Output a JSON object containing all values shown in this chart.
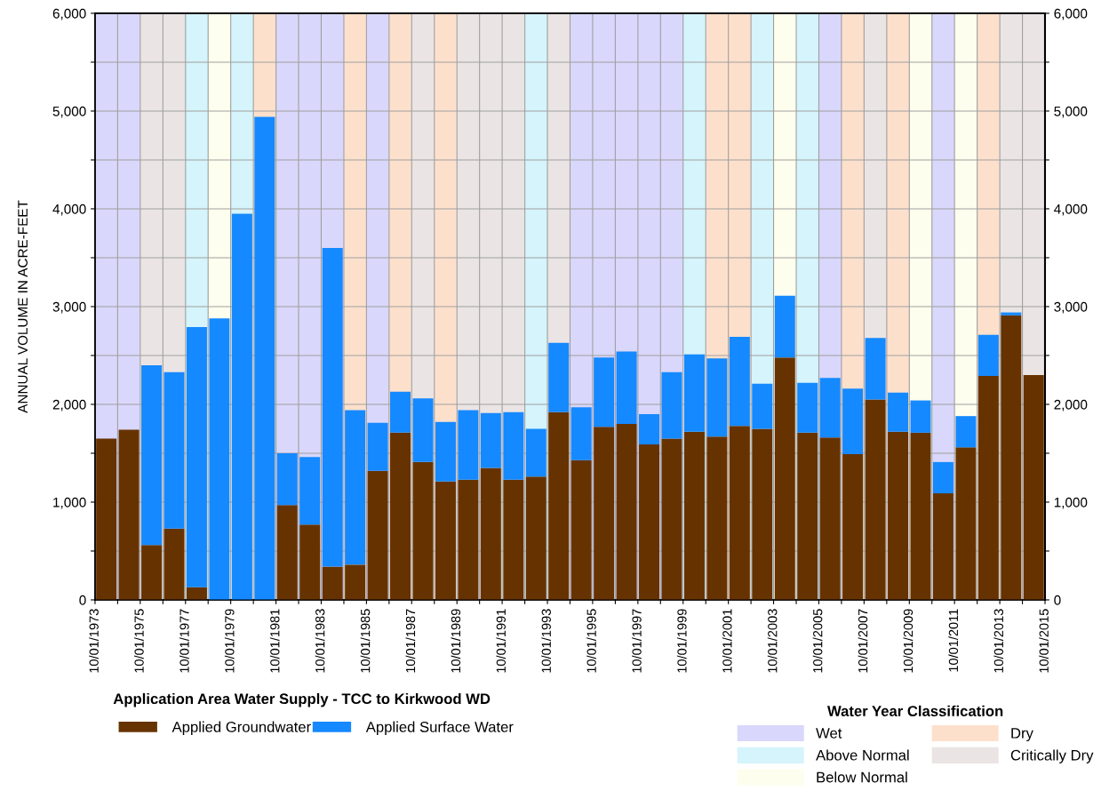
{
  "chart_data": {
    "type": "bar",
    "stacked": true,
    "title": "Application Area Water Supply - TCC to Kirkwood WD",
    "ylabel": "ANNUAL VOLUME IN ACRE-FEET",
    "legend_title": "Water Year Classification",
    "x": [
      "1974-04-01",
      "1975-04-01",
      "1976-04-01",
      "1977-04-01",
      "1978-04-01",
      "1979-04-01",
      "1980-04-01",
      "1981-04-01",
      "1982-04-01",
      "1983-04-01",
      "1984-04-01",
      "1985-04-01",
      "1986-04-01",
      "1987-04-01",
      "1988-04-01",
      "1989-04-01",
      "1990-04-01",
      "1991-04-01",
      "1992-04-01",
      "1993-04-01",
      "1994-04-01",
      "1995-04-01",
      "1996-04-01",
      "1997-04-01",
      "1998-04-01",
      "1999-04-01",
      "2000-04-01",
      "2001-04-01",
      "2002-04-01",
      "2003-04-01",
      "2004-04-01",
      "2005-04-01",
      "2006-04-01",
      "2007-04-01",
      "2008-04-01",
      "2009-04-01",
      "2010-04-01",
      "2011-04-01",
      "2012-04-01",
      "2013-04-01",
      "2014-04-01",
      "2015-04-01"
    ],
    "series": [
      {
        "name": "Applied Groundwater",
        "color": "#663300",
        "values": [
          1650,
          1740,
          560,
          730,
          130,
          0,
          0,
          0,
          970,
          770,
          340,
          360,
          1320,
          1710,
          1410,
          1210,
          1230,
          1350,
          1230,
          1260,
          1920,
          1430,
          1770,
          1800,
          1590,
          1650,
          1720,
          1670,
          1780,
          1750,
          2480,
          1710,
          1660,
          1490,
          2050,
          1720,
          1710,
          1090,
          1560,
          2290,
          2910,
          2300
        ]
      },
      {
        "name": "Applied Surface Water",
        "color": "#1589ff",
        "values": [
          0,
          0,
          1840,
          1600,
          2660,
          2880,
          3950,
          4940,
          530,
          690,
          3260,
          1580,
          490,
          420,
          650,
          610,
          710,
          560,
          690,
          490,
          710,
          540,
          710,
          740,
          310,
          680,
          790,
          800,
          910,
          460,
          630,
          510,
          610,
          670,
          630,
          400,
          330,
          320,
          320,
          420,
          30,
          0
        ]
      }
    ],
    "xlim": [
      "1973-10-01",
      "2015-10-01"
    ],
    "xticks": [
      {
        "value": "1973-10-01",
        "label": "10/01/1973"
      },
      {
        "value": "1974-10-01",
        "label": null
      },
      {
        "value": "1975-10-01",
        "label": "10/01/1975"
      },
      {
        "value": "1976-10-01",
        "label": null
      },
      {
        "value": "1977-10-01",
        "label": "10/01/1977"
      },
      {
        "value": "1978-10-01",
        "label": null
      },
      {
        "value": "1979-10-01",
        "label": "10/01/1979"
      },
      {
        "value": "1980-10-01",
        "label": null
      },
      {
        "value": "1981-10-01",
        "label": "10/01/1981"
      },
      {
        "value": "1982-10-01",
        "label": null
      },
      {
        "value": "1983-10-01",
        "label": "10/01/1983"
      },
      {
        "value": "1984-10-01",
        "label": null
      },
      {
        "value": "1985-10-01",
        "label": "10/01/1985"
      },
      {
        "value": "1986-10-01",
        "label": null
      },
      {
        "value": "1987-10-01",
        "label": "10/01/1987"
      },
      {
        "value": "1988-10-01",
        "label": null
      },
      {
        "value": "1989-10-01",
        "label": "10/01/1989"
      },
      {
        "value": "1990-10-01",
        "label": null
      },
      {
        "value": "1991-10-01",
        "label": "10/01/1991"
      },
      {
        "value": "1992-10-01",
        "label": null
      },
      {
        "value": "1993-10-01",
        "label": "10/01/1993"
      },
      {
        "value": "1994-10-01",
        "label": null
      },
      {
        "value": "1995-10-01",
        "label": "10/01/1995"
      },
      {
        "value": "1996-10-01",
        "label": null
      },
      {
        "value": "1997-10-01",
        "label": "10/01/1997"
      },
      {
        "value": "1998-10-01",
        "label": null
      },
      {
        "value": "1999-10-01",
        "label": "10/01/1999"
      },
      {
        "value": "2000-10-01",
        "label": null
      },
      {
        "value": "2001-10-01",
        "label": "10/01/2001"
      },
      {
        "value": "2002-10-01",
        "label": null
      },
      {
        "value": "2003-10-01",
        "label": "10/01/2003"
      },
      {
        "value": "2004-10-01",
        "label": null
      },
      {
        "value": "2005-10-01",
        "label": "10/01/2005"
      },
      {
        "value": "2006-10-01",
        "label": null
      },
      {
        "value": "2007-10-01",
        "label": "10/01/2007"
      },
      {
        "value": "2008-10-01",
        "label": null
      },
      {
        "value": "2009-10-01",
        "label": "10/01/2009"
      },
      {
        "value": "2010-10-01",
        "label": null
      },
      {
        "value": "2011-10-01",
        "label": "10/01/2011"
      },
      {
        "value": "2012-10-01",
        "label": null
      },
      {
        "value": "2013-10-01",
        "label": "10/01/2013"
      },
      {
        "value": "2014-10-01",
        "label": null
      },
      {
        "value": "2015-10-01",
        "label": "10/01/2015"
      }
    ],
    "ylim": [
      0,
      6000
    ],
    "yticks": [
      0,
      {
        "value": 500,
        "label": null
      },
      {
        "value": 1000,
        "label": "1,000"
      },
      {
        "value": 1500,
        "label": null
      },
      {
        "value": 2000,
        "label": "2,000"
      },
      {
        "value": 2500,
        "label": null
      },
      {
        "value": 3000,
        "label": "3,000"
      },
      {
        "value": 3500,
        "label": null
      },
      {
        "value": 4000,
        "label": "4,000"
      },
      {
        "value": 4500,
        "label": null
      },
      {
        "value": 5000,
        "label": "5,000"
      },
      {
        "value": 5500,
        "label": null
      },
      {
        "value": 6000,
        "label": "6,000"
      }
    ],
    "y2lim": [
      0,
      6000
    ],
    "y2ticks": [
      0,
      {
        "value": 500,
        "label": null
      },
      {
        "value": 1000,
        "label": "1,000"
      },
      {
        "value": 1500,
        "label": null
      },
      {
        "value": 2000,
        "label": "2,000"
      },
      {
        "value": 2500,
        "label": null
      },
      {
        "value": 3000,
        "label": "3,000"
      },
      {
        "value": 3500,
        "label": null
      },
      {
        "value": 4000,
        "label": "4,000"
      },
      {
        "value": 4500,
        "label": null
      },
      {
        "value": 5000,
        "label": "5,000"
      },
      {
        "value": 5500,
        "label": null
      },
      {
        "value": 6000,
        "label": "6,000"
      }
    ],
    "grid": true,
    "legend": "bottom left",
    "bands": [
      {
        "axis": "x",
        "from": "1973-10-01",
        "to": "1974-10-01",
        "label": "Wet",
        "color": "#d9d7fb"
      },
      {
        "axis": "x",
        "from": "1974-10-01",
        "to": "1975-10-01",
        "color": "#d9d7fb"
      },
      {
        "axis": "x",
        "from": "1981-10-01",
        "to": "1982-10-01",
        "color": "#d9d7fb"
      },
      {
        "axis": "x",
        "from": "1982-10-01",
        "to": "1983-10-01",
        "color": "#d9d7fb"
      },
      {
        "axis": "x",
        "from": "1983-10-01",
        "to": "1984-10-01",
        "color": "#d9d7fb"
      },
      {
        "axis": "x",
        "from": "1985-10-01",
        "to": "1986-10-01",
        "color": "#d9d7fb"
      },
      {
        "axis": "x",
        "from": "1994-10-01",
        "to": "1995-10-01",
        "color": "#d9d7fb"
      },
      {
        "axis": "x",
        "from": "1995-10-01",
        "to": "1996-10-01",
        "color": "#d9d7fb"
      },
      {
        "axis": "x",
        "from": "1996-10-01",
        "to": "1997-10-01",
        "color": "#d9d7fb"
      },
      {
        "axis": "x",
        "from": "1997-10-01",
        "to": "1998-10-01",
        "color": "#d9d7fb"
      },
      {
        "axis": "x",
        "from": "1998-10-01",
        "to": "1999-10-01",
        "color": "#d9d7fb"
      },
      {
        "axis": "x",
        "from": "2005-10-01",
        "to": "2006-10-01",
        "color": "#d9d7fb"
      },
      {
        "axis": "x",
        "from": "2010-10-01",
        "to": "2011-10-01",
        "color": "#d9d7fb"
      },
      {
        "axis": "x",
        "from": "1977-10-01",
        "to": "1978-10-01",
        "label": "Above Normal",
        "color": "#d5f4fb"
      },
      {
        "axis": "x",
        "from": "1979-10-01",
        "to": "1980-10-01",
        "color": "#d5f4fb"
      },
      {
        "axis": "x",
        "from": "1992-10-01",
        "to": "1993-10-01",
        "color": "#d5f4fb"
      },
      {
        "axis": "x",
        "from": "1999-10-01",
        "to": "2000-10-01",
        "color": "#d5f4fb"
      },
      {
        "axis": "x",
        "from": "2002-10-01",
        "to": "2003-10-01",
        "color": "#d5f4fb"
      },
      {
        "axis": "x",
        "from": "2004-10-01",
        "to": "2005-10-01",
        "color": "#d5f4fb"
      },
      {
        "axis": "x",
        "from": "1978-10-01",
        "to": "1979-10-01",
        "label": "Below Normal",
        "color": "#fefeee"
      },
      {
        "axis": "x",
        "from": "2003-10-01",
        "to": "2004-10-01",
        "color": "#fefeee"
      },
      {
        "axis": "x",
        "from": "2009-10-01",
        "to": "2010-10-01",
        "color": "#fefeee"
      },
      {
        "axis": "x",
        "from": "2011-10-01",
        "to": "2012-10-01",
        "color": "#fefeee"
      },
      {
        "axis": "x",
        "from": "1980-10-01",
        "to": "1981-10-01",
        "label": "Dry",
        "color": "#fde0cc"
      },
      {
        "axis": "x",
        "from": "1984-10-01",
        "to": "1985-10-01",
        "color": "#fde0cc"
      },
      {
        "axis": "x",
        "from": "1986-10-01",
        "to": "1987-10-01",
        "color": "#fde0cc"
      },
      {
        "axis": "x",
        "from": "1988-10-01",
        "to": "1989-10-01",
        "color": "#fde0cc"
      },
      {
        "axis": "x",
        "from": "2000-10-01",
        "to": "2001-10-01",
        "color": "#fde0cc"
      },
      {
        "axis": "x",
        "from": "2001-10-01",
        "to": "2002-10-01",
        "color": "#fde0cc"
      },
      {
        "axis": "x",
        "from": "2006-10-01",
        "to": "2007-10-01",
        "color": "#fde0cc"
      },
      {
        "axis": "x",
        "from": "2008-10-01",
        "to": "2009-10-01",
        "color": "#fde0cc"
      },
      {
        "axis": "x",
        "from": "2012-10-01",
        "to": "2013-10-01",
        "color": "#fde0cc"
      },
      {
        "axis": "x",
        "from": "1975-10-01",
        "to": "1976-10-01",
        "label": "Critically Dry",
        "color": "#ebe4e4"
      },
      {
        "axis": "x",
        "from": "1976-10-01",
        "to": "1977-10-01",
        "color": "#ebe4e4"
      },
      {
        "axis": "x",
        "from": "1987-10-01",
        "to": "1988-10-01",
        "color": "#ebe4e4"
      },
      {
        "axis": "x",
        "from": "1989-10-01",
        "to": "1990-10-01",
        "color": "#ebe4e4"
      },
      {
        "axis": "x",
        "from": "1990-10-01",
        "to": "1991-10-01",
        "color": "#ebe4e4"
      },
      {
        "axis": "x",
        "from": "1991-10-01",
        "to": "1992-10-01",
        "color": "#ebe4e4"
      },
      {
        "axis": "x",
        "from": "1993-10-01",
        "to": "1994-10-01",
        "color": "#ebe4e4"
      },
      {
        "axis": "x",
        "from": "2007-10-01",
        "to": "2008-10-01",
        "color": "#ebe4e4"
      },
      {
        "axis": "x",
        "from": "2013-10-01",
        "to": "2014-10-01",
        "color": "#ebe4e4"
      },
      {
        "axis": "x",
        "from": "2014-10-01",
        "to": "2015-10-01",
        "color": "#ebe4e4"
      }
    ]
  }
}
